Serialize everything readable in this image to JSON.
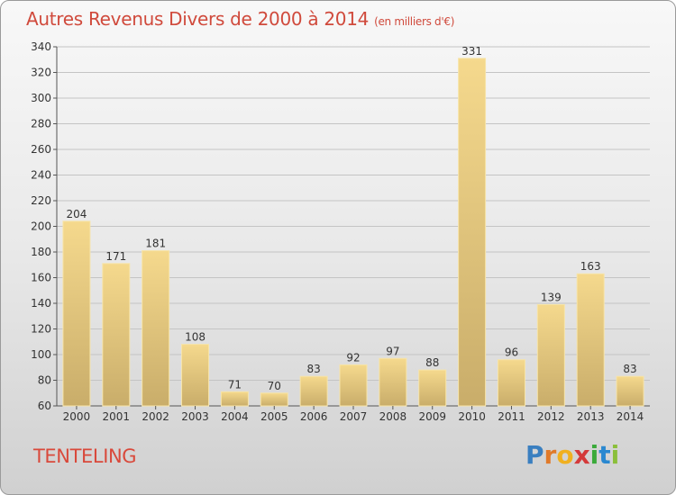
{
  "header": {
    "title": "Autres Revenus Divers de 2000 à 2014",
    "unit": "(en milliers d'€)"
  },
  "commune": "TENTELING",
  "logo": {
    "letters": [
      "P",
      "r",
      "o",
      "x",
      "i",
      "t",
      "i"
    ],
    "colors": [
      "#3a7fc0",
      "#e07a2a",
      "#f0b020",
      "#d43a3a",
      "#3aaa3a",
      "#2a88d0",
      "#8bbf3a"
    ]
  },
  "chart_data": {
    "type": "bar",
    "title": "Autres Revenus Divers de 2000 à 2014",
    "subtitle": "(en milliers d'€)",
    "categories": [
      "2000",
      "2001",
      "2002",
      "2003",
      "2004",
      "2005",
      "2006",
      "2007",
      "2008",
      "2009",
      "2010",
      "2011",
      "2012",
      "2013",
      "2014"
    ],
    "values": [
      204,
      171,
      181,
      108,
      71,
      70,
      83,
      92,
      97,
      88,
      331,
      96,
      139,
      163,
      83
    ],
    "ylim": [
      60,
      340
    ],
    "yticks": [
      60,
      80,
      100,
      120,
      140,
      160,
      180,
      200,
      220,
      240,
      260,
      280,
      300,
      320,
      340
    ],
    "grid": true,
    "bar_color_top": "#f5d98d",
    "bar_color_bottom": "#c9ad6a"
  }
}
